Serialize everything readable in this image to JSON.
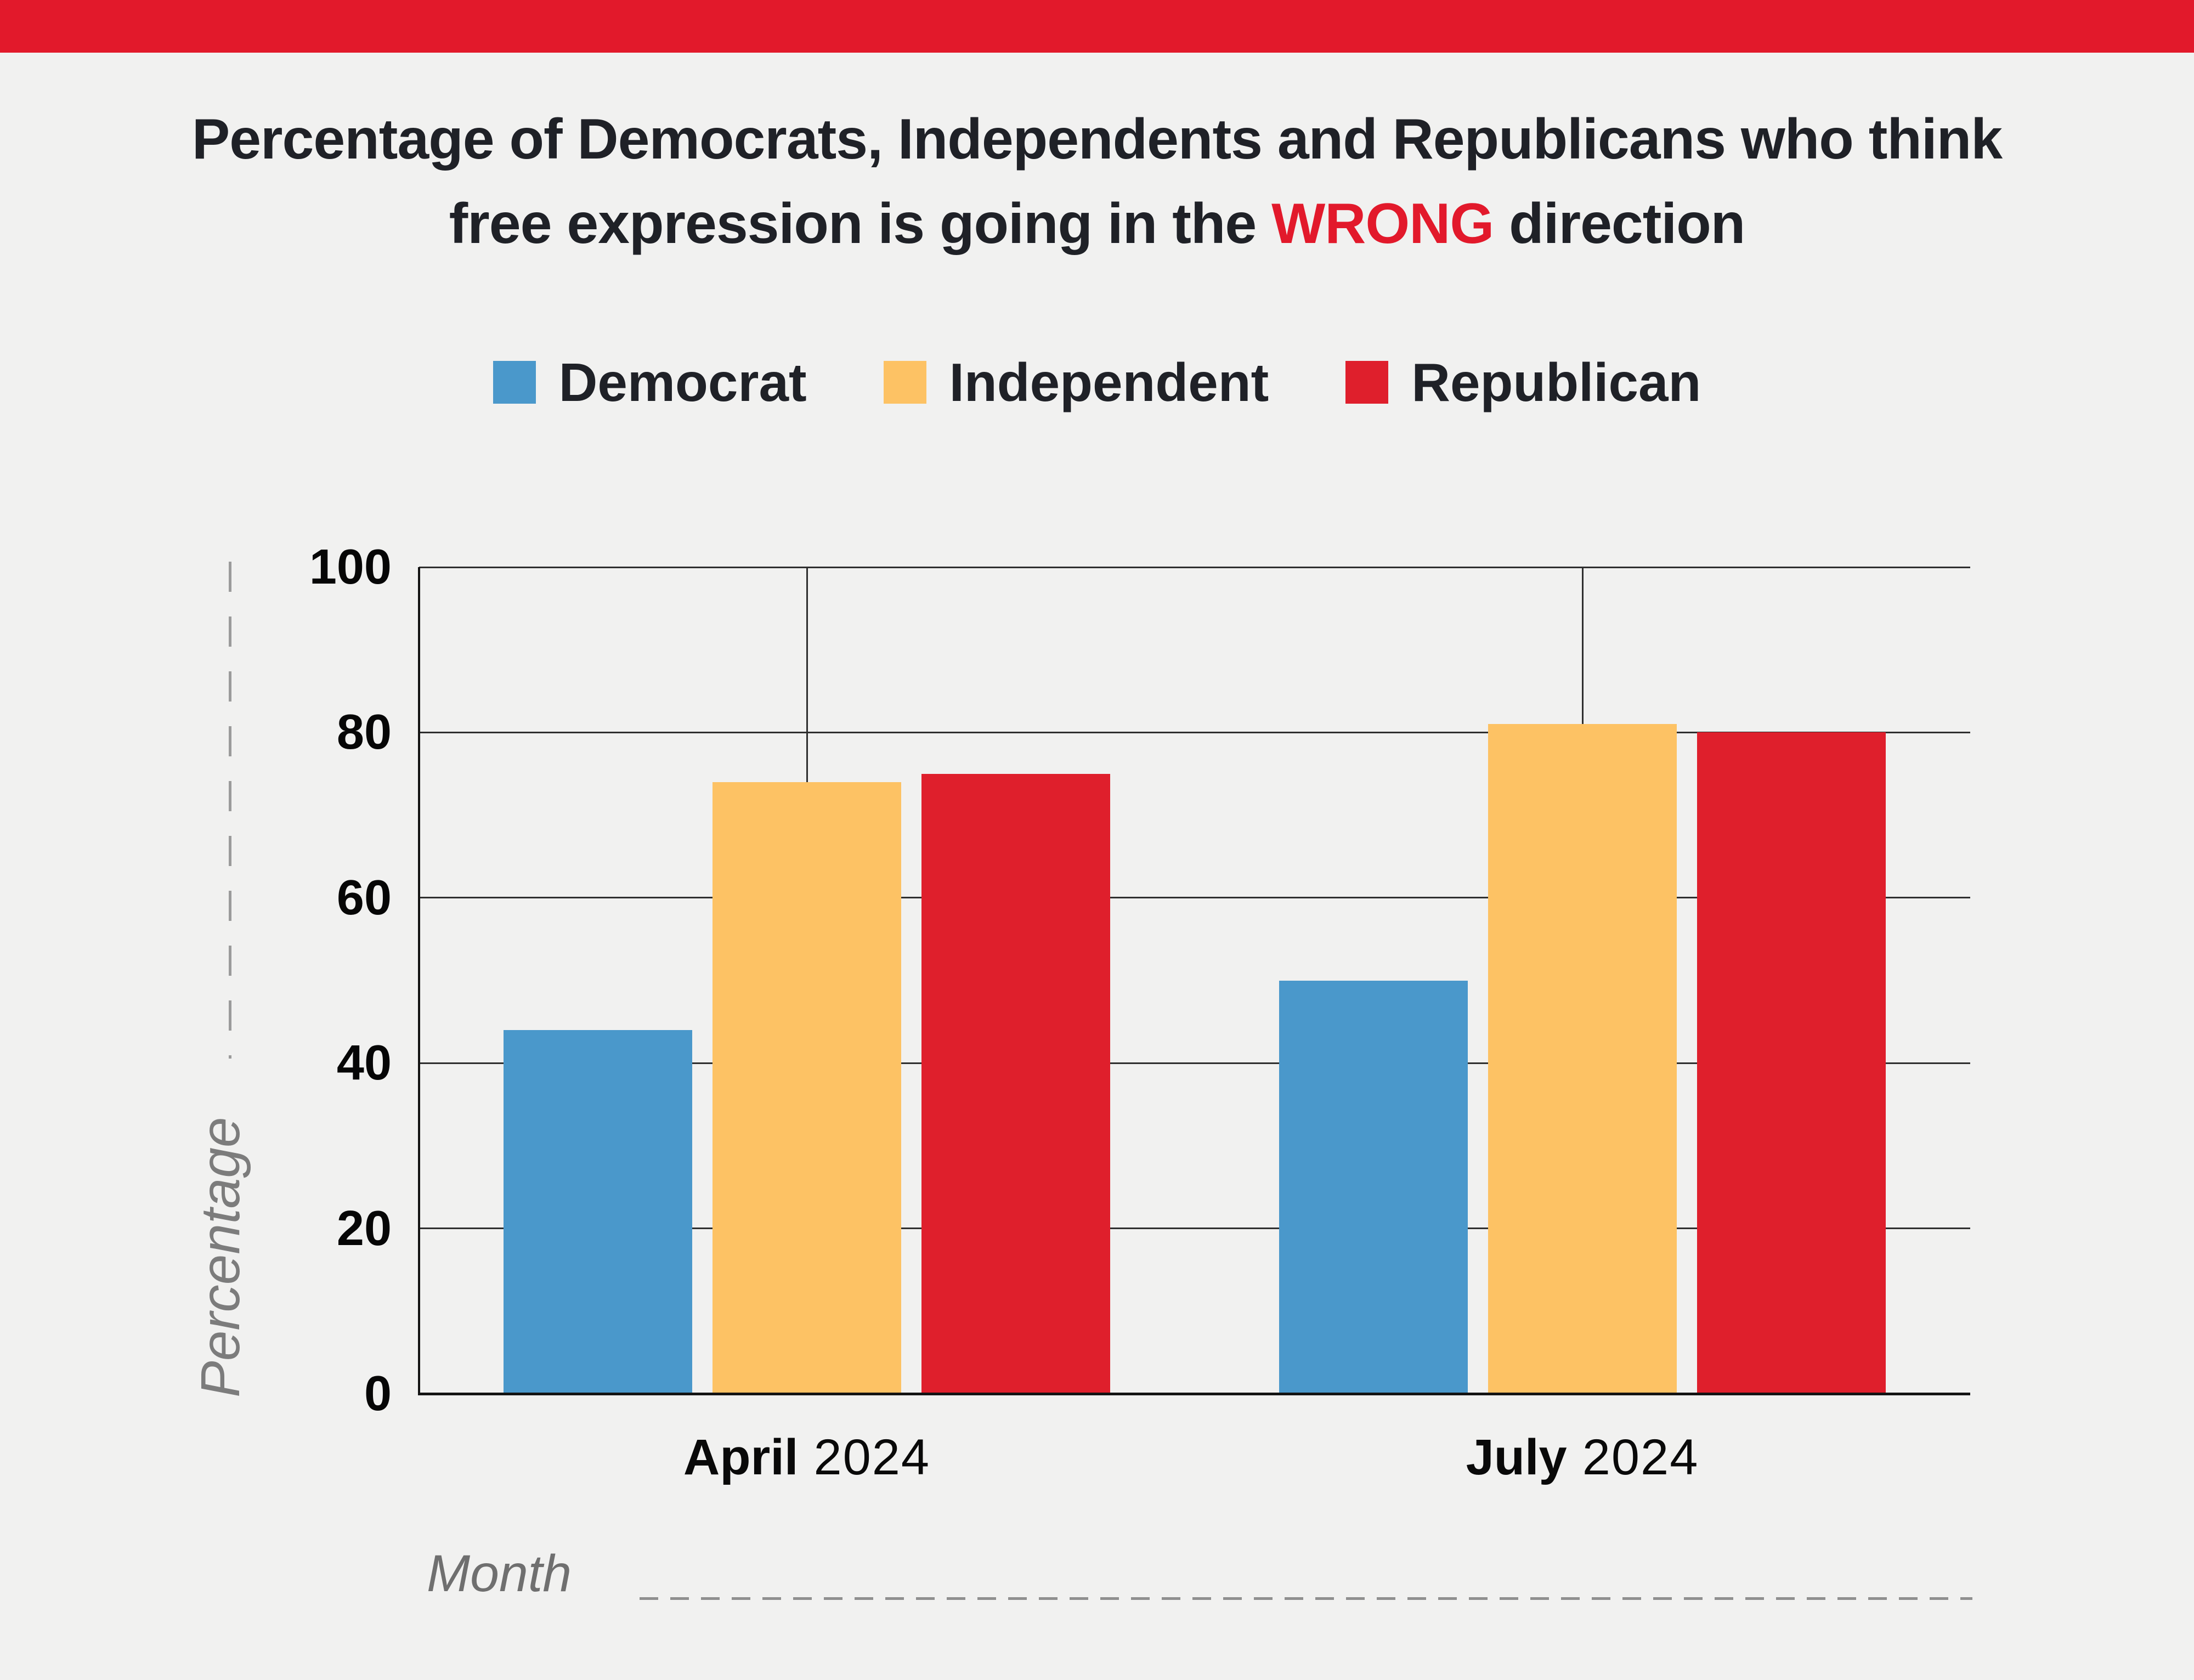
{
  "banner": {
    "color": "#E2192B"
  },
  "title": {
    "line1": "Percentage of Democrats, Independents and Republicans who think",
    "line2_prefix": "free expression is going in the ",
    "line2_highlight": "WRONG",
    "line2_suffix": " direction",
    "highlight_color": "#E2192B",
    "text_color": "#1F2127"
  },
  "legend": {
    "position": "top",
    "items": [
      {
        "label": "Democrat",
        "color": "#4A98CB"
      },
      {
        "label": "Independent",
        "color": "#FDC264"
      },
      {
        "label": "Republican",
        "color": "#DF1F2C"
      }
    ]
  },
  "chart_data": {
    "type": "bar",
    "title": "Percentage of Democrats, Independents and Republicans who think free expression is going in the WRONG direction",
    "categories": [
      {
        "month": "April",
        "year": "2024"
      },
      {
        "month": "July",
        "year": "2024"
      }
    ],
    "series": [
      {
        "name": "Democrat",
        "color": "#4A98CB",
        "values": [
          44,
          50
        ]
      },
      {
        "name": "Independent",
        "color": "#FDC264",
        "values": [
          74,
          81
        ]
      },
      {
        "name": "Republican",
        "color": "#DF1F2C",
        "values": [
          75,
          80
        ]
      }
    ],
    "xlabel": "Month",
    "ylabel": "Percentage",
    "ylim": [
      0,
      100
    ],
    "y_ticks": [
      100,
      80,
      60,
      40,
      20,
      0
    ],
    "grid": "horizontal gridlines at ticks, vertical gridline at each category center",
    "legend_position": "top center"
  }
}
